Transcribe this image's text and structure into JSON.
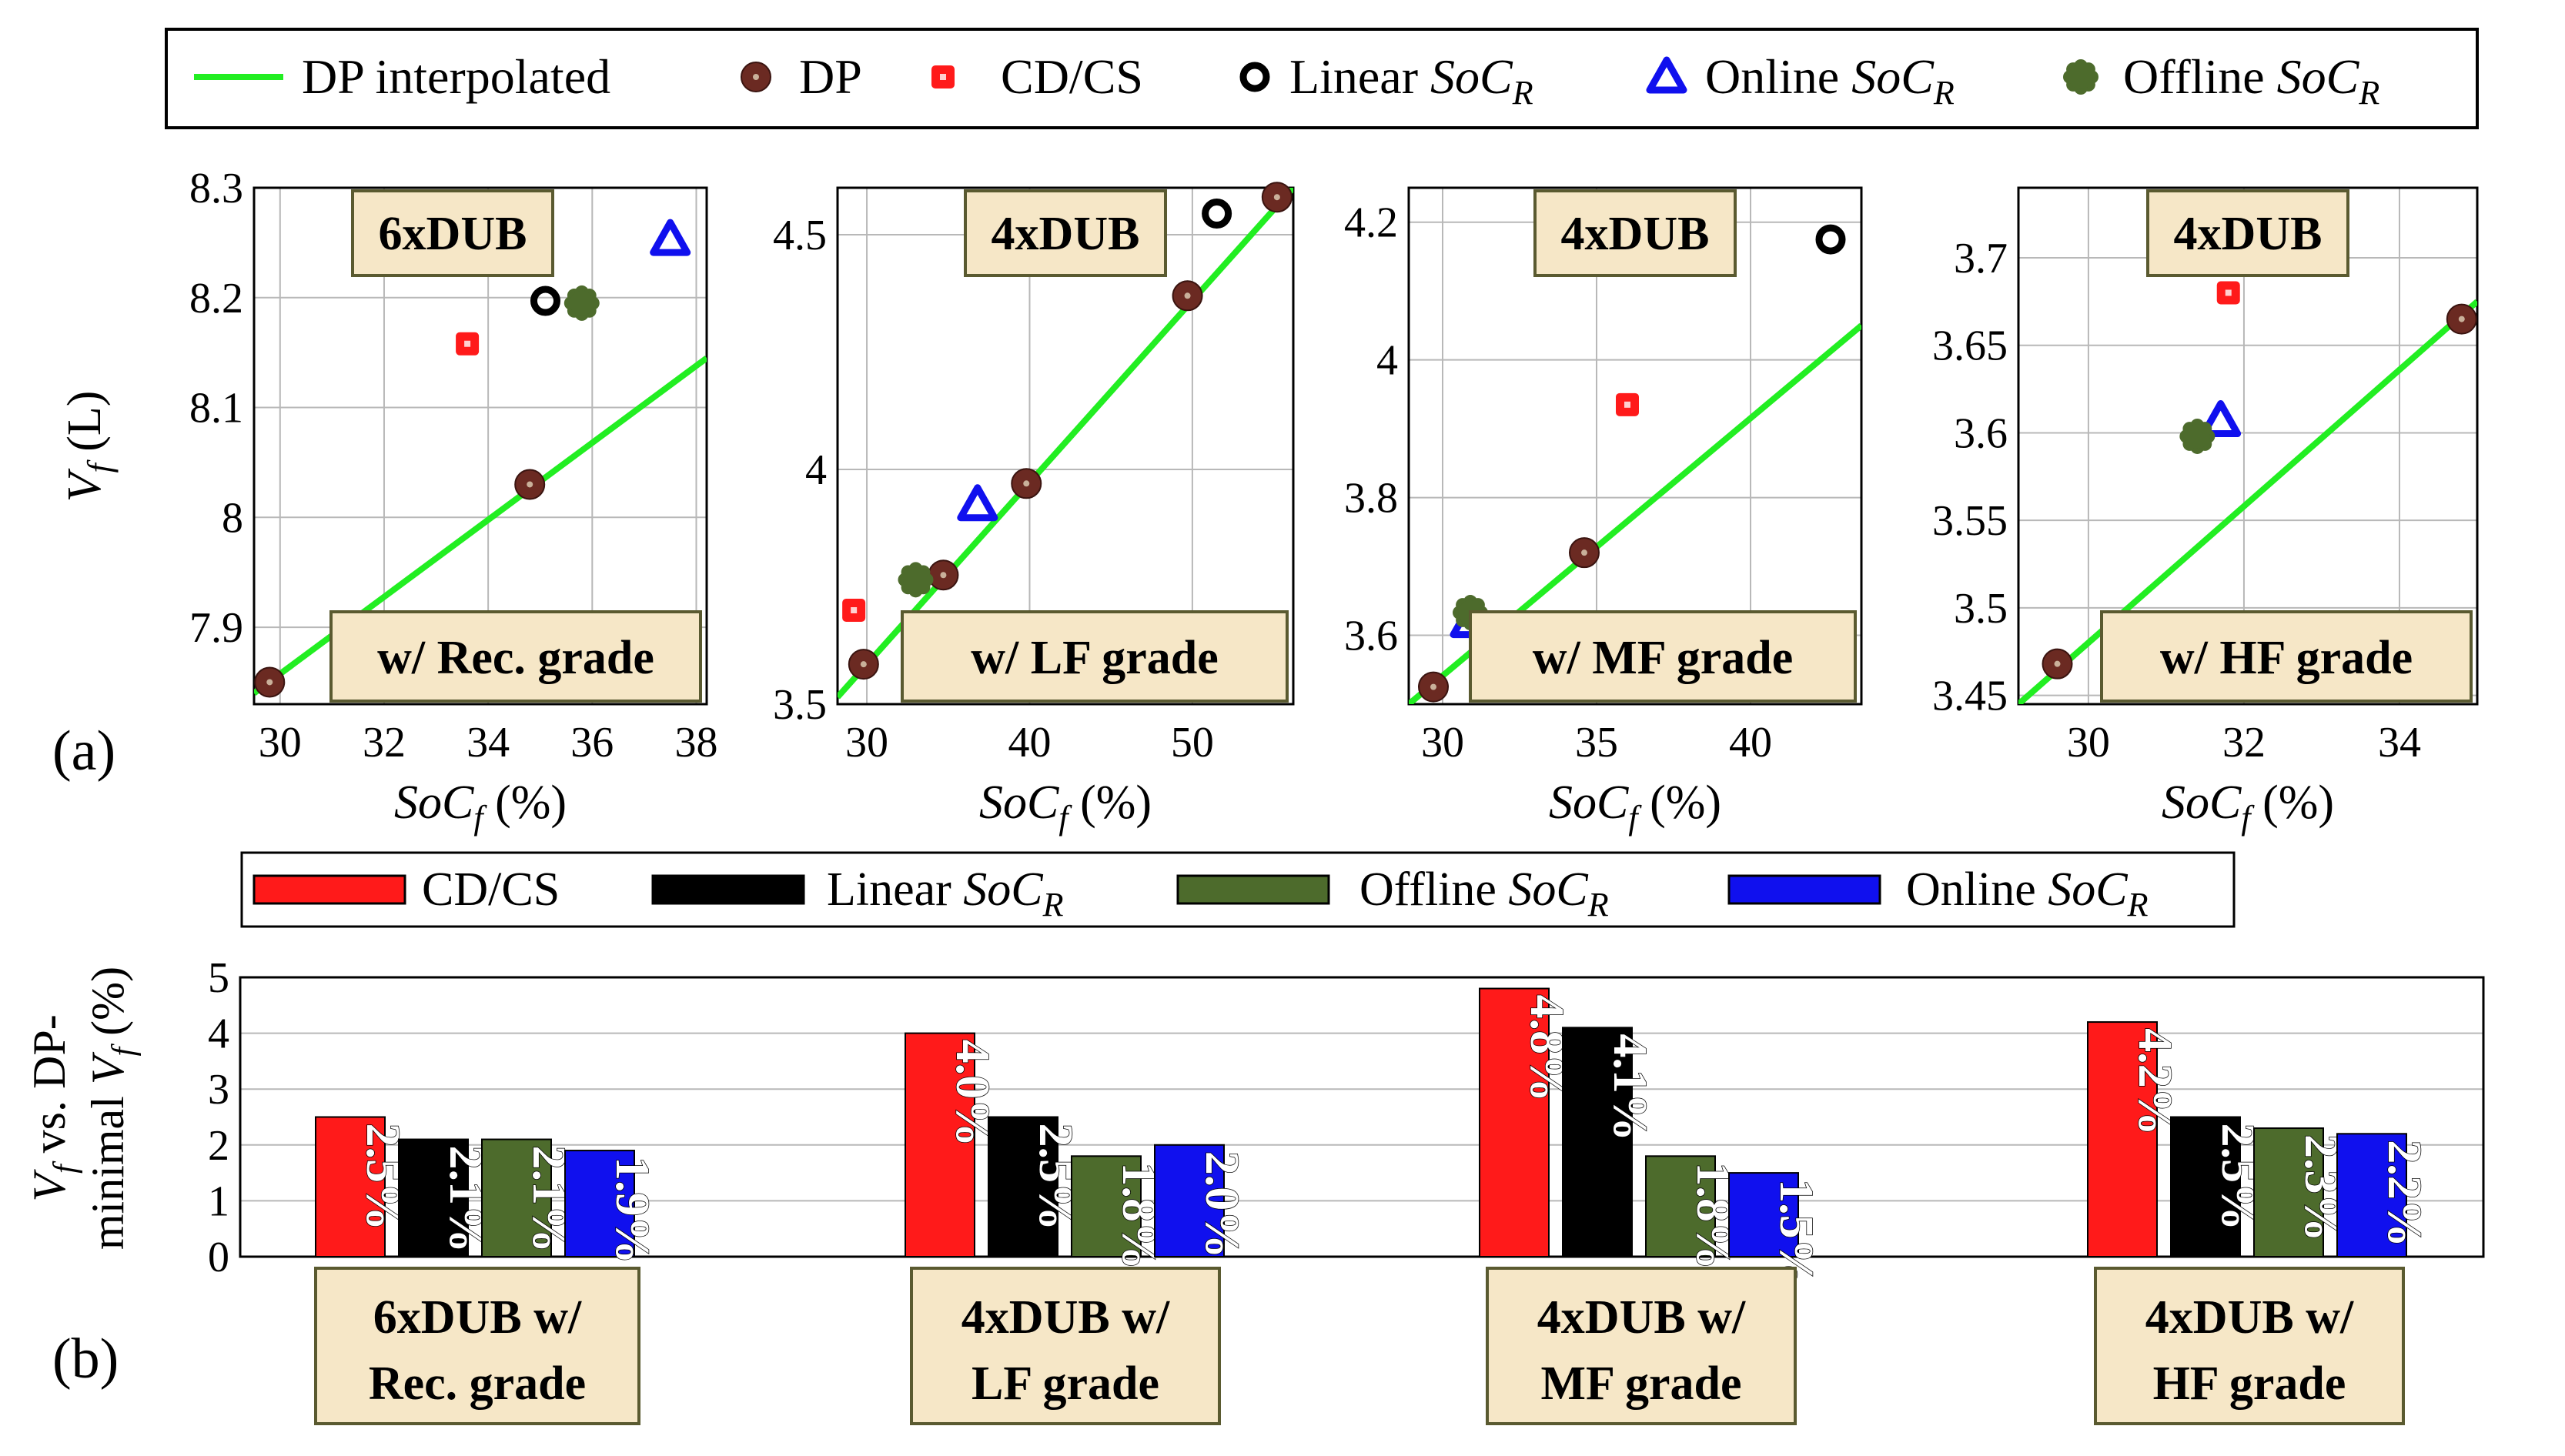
{
  "legend_top": {
    "items": [
      {
        "label": "DP interpolated",
        "marker": "line",
        "color": "#22ee22"
      },
      {
        "label": "DP",
        "marker": "dp-circle",
        "color": "#6b2a22"
      },
      {
        "label": "CD/CS",
        "marker": "square",
        "color": "#ff1a1a"
      },
      {
        "label": "Linear ",
        "label_ital": "SoC",
        "label_sub": "R",
        "marker": "ring",
        "color": "#000000"
      },
      {
        "label": "Online ",
        "label_ital": "SoC",
        "label_sub": "R",
        "marker": "triangle",
        "color": "#1010ee"
      },
      {
        "label": "Offline ",
        "label_ital": "SoC",
        "label_sub": "R",
        "marker": "gear",
        "color": "#4d6b2c"
      }
    ]
  },
  "panel_labels": {
    "a": "(a)",
    "b": "(b)"
  },
  "top_ylabel": {
    "main": "V",
    "sub": "f",
    "rest": " (L)"
  },
  "top_xlabel": {
    "main": "SoC",
    "sub": "f",
    "rest": " (%)"
  },
  "colors": {
    "dp_line": "#22ee22",
    "dp": "#6b2a22",
    "cdcs": "#ff1a1a",
    "linear": "#000000",
    "online": "#1010ee",
    "offline": "#4d6b2c",
    "label_box_fill": "#f6e7c7",
    "label_box_stroke": "#5a5a30"
  },
  "chart_data": [
    {
      "type": "scatter",
      "top_label": "6xDUB",
      "bottom_label": "w/ Rec. grade",
      "xlim": [
        29.5,
        38.2
      ],
      "ylim": [
        7.83,
        8.3
      ],
      "xticks": [
        30,
        32,
        34,
        36,
        38
      ],
      "yticks": [
        7.9,
        8,
        8.1,
        8.2,
        8.3
      ],
      "ytick_labels": [
        "7.9",
        "8",
        "8.1",
        "8.2",
        "8.3"
      ],
      "dp_line": [
        [
          29.5,
          7.84
        ],
        [
          38.2,
          8.145
        ]
      ],
      "points": {
        "dp": [
          [
            29.8,
            7.85
          ],
          [
            34.8,
            8.03
          ]
        ],
        "cdcs": [
          [
            33.6,
            8.158
          ]
        ],
        "linear": [
          [
            35.1,
            8.197
          ]
        ],
        "online": [
          [
            37.5,
            8.253
          ]
        ],
        "offline": [
          [
            35.8,
            8.195
          ]
        ]
      }
    },
    {
      "type": "scatter",
      "top_label": "4xDUB",
      "bottom_label": "w/ LF grade",
      "xlim": [
        28.2,
        56.2
      ],
      "ylim": [
        3.5,
        4.6
      ],
      "xticks": [
        30,
        40,
        50
      ],
      "yticks": [
        3.5,
        4,
        4.5
      ],
      "ytick_labels": [
        "3.5",
        "4",
        "4.5"
      ],
      "dp_line": [
        [
          28.2,
          3.515
        ],
        [
          56.2,
          4.6
        ]
      ],
      "points": {
        "dp": [
          [
            29.8,
            3.585
          ],
          [
            34.7,
            3.775
          ],
          [
            39.8,
            3.97
          ],
          [
            49.7,
            4.37
          ],
          [
            55.2,
            4.58
          ]
        ],
        "cdcs": [
          [
            29.2,
            3.7
          ]
        ],
        "linear": [
          [
            51.5,
            4.545
          ]
        ],
        "online": [
          [
            36.8,
            3.925
          ]
        ],
        "offline": [
          [
            33.0,
            3.765
          ]
        ]
      }
    },
    {
      "type": "scatter",
      "top_label": "4xDUB",
      "bottom_label": "w/ MF grade",
      "xlim": [
        28.9,
        43.6
      ],
      "ylim": [
        3.5,
        4.25
      ],
      "xticks": [
        30,
        35,
        40
      ],
      "yticks": [
        3.6,
        3.8,
        4,
        4.2
      ],
      "ytick_labels": [
        "3.6",
        "3.8",
        "4",
        "4.2"
      ],
      "dp_line": [
        [
          28.9,
          3.5
        ],
        [
          43.6,
          4.05
        ]
      ],
      "points": {
        "dp": [
          [
            29.7,
            3.525
          ],
          [
            34.6,
            3.72
          ]
        ],
        "cdcs": [
          [
            36.0,
            3.935
          ]
        ],
        "linear": [
          [
            42.6,
            4.175
          ]
        ],
        "online": [
          [
            30.9,
            3.62
          ]
        ],
        "offline": [
          [
            30.9,
            3.633
          ]
        ]
      }
    },
    {
      "type": "scatter",
      "top_label": "4xDUB",
      "bottom_label": "w/ HF grade",
      "xlim": [
        29.1,
        35.0
      ],
      "ylim": [
        3.445,
        3.74
      ],
      "xticks": [
        30,
        32,
        34
      ],
      "yticks": [
        3.45,
        3.5,
        3.55,
        3.6,
        3.65,
        3.7
      ],
      "ytick_labels": [
        "3.45",
        "3.5",
        "3.55",
        "3.6",
        "3.65",
        "3.7"
      ],
      "dp_line": [
        [
          29.1,
          3.445
        ],
        [
          35.0,
          3.675
        ]
      ],
      "points": {
        "dp": [
          [
            29.6,
            3.468
          ],
          [
            34.8,
            3.665
          ]
        ],
        "cdcs": [
          [
            31.8,
            3.68
          ]
        ],
        "online": [
          [
            31.7,
            3.607
          ]
        ],
        "offline": [
          [
            31.4,
            3.598
          ]
        ]
      }
    },
    {
      "type": "bar",
      "ylabel_line1": "vs. DP-",
      "ylabel_v": "V",
      "ylabel_vsub": "f",
      "ylabel_line2": "minimal ",
      "ylabel_unit": " (%)",
      "ylim": [
        0,
        5
      ],
      "yticks": [
        0,
        1,
        2,
        3,
        4,
        5
      ],
      "categories_line1": [
        "6xDUB w/",
        "4xDUB w/",
        "4xDUB w/",
        "4xDUB w/"
      ],
      "categories_line2": [
        "Rec. grade",
        "LF grade",
        "MF grade",
        "HF grade"
      ],
      "legend": [
        {
          "label": "CD/CS",
          "ital": "",
          "sub": "",
          "color": "#ff1a1a"
        },
        {
          "label": "Linear ",
          "ital": "SoC",
          "sub": "R",
          "color": "#000000"
        },
        {
          "label": "Offline ",
          "ital": "SoC",
          "sub": "R",
          "color": "#4d6b2c"
        },
        {
          "label": "Online ",
          "ital": "SoC",
          "sub": "R",
          "color": "#1010ee"
        }
      ],
      "series": [
        {
          "name": "CD/CS",
          "color": "#ff1a1a",
          "values": [
            2.5,
            4.0,
            4.8,
            4.2
          ],
          "labels": [
            "2.5%",
            "4.0%",
            "4.8%",
            "4.2%"
          ]
        },
        {
          "name": "Linear SoCR",
          "color": "#000000",
          "values": [
            2.1,
            2.5,
            4.1,
            2.5
          ],
          "labels": [
            "2.1%",
            "2.5%",
            "4.1%",
            "2.5%"
          ]
        },
        {
          "name": "Offline SoCR",
          "color": "#4d6b2c",
          "values": [
            2.1,
            1.8,
            1.8,
            2.3
          ],
          "labels": [
            "2.1%",
            "1.8%",
            "1.8%",
            "2.3%"
          ]
        },
        {
          "name": "Online SoCR",
          "color": "#1010ee",
          "values": [
            1.9,
            2.0,
            1.5,
            2.2
          ],
          "labels": [
            "1.9%",
            "2.0%",
            "1.5%",
            "2.2%"
          ]
        }
      ]
    }
  ]
}
